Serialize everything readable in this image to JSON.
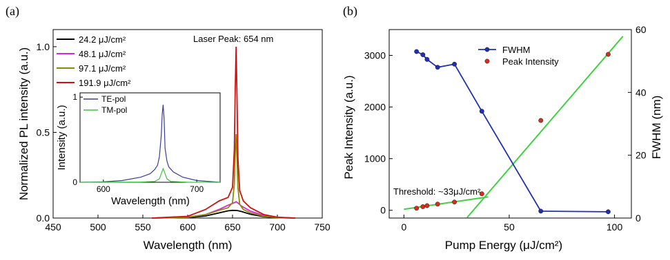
{
  "chart_data": [
    {
      "panel": "(a)",
      "type": "line",
      "xlabel": "Wavelength (nm)",
      "ylabel": "Normalized PL intensity (a.u.)",
      "xlim": [
        450,
        750
      ],
      "ylim": [
        0,
        1.1
      ],
      "xticks": [
        "450",
        "500",
        "550",
        "600",
        "650",
        "700",
        "750"
      ],
      "yticks": [
        "0.0",
        "0.5",
        "1.0"
      ],
      "annotation": "Laser Peak: 654 nm",
      "legend_position": "top-left",
      "series": [
        {
          "name": "24.2 μJ/cm²",
          "color": "#000000",
          "peak": 0.045,
          "x": [
            560,
            600,
            620,
            635,
            645,
            650,
            655,
            660,
            670,
            685,
            700,
            720
          ],
          "y": [
            0,
            0.003,
            0.012,
            0.03,
            0.042,
            0.045,
            0.044,
            0.038,
            0.022,
            0.008,
            0.002,
            0
          ]
        },
        {
          "name": "48.1 μJ/cm²",
          "color": "#e020e0",
          "peak": 0.095,
          "x": [
            560,
            600,
            620,
            635,
            645,
            650,
            652,
            654,
            656,
            660,
            670,
            685,
            700,
            720
          ],
          "y": [
            0,
            0.005,
            0.02,
            0.05,
            0.075,
            0.085,
            0.09,
            0.095,
            0.088,
            0.07,
            0.04,
            0.015,
            0.004,
            0
          ]
        },
        {
          "name": "97.1 μJ/cm²",
          "color": "#8a8a00",
          "peak": 0.49,
          "x": [
            560,
            600,
            620,
            635,
            645,
            650,
            652,
            653,
            654,
            655,
            656,
            658,
            662,
            670,
            685,
            700,
            720
          ],
          "y": [
            0,
            0.005,
            0.02,
            0.045,
            0.06,
            0.09,
            0.2,
            0.38,
            0.49,
            0.35,
            0.18,
            0.08,
            0.05,
            0.03,
            0.01,
            0.003,
            0
          ]
        },
        {
          "name": "191.9 μJ/cm²",
          "color": "#d01010",
          "peak": 1.0,
          "x": [
            560,
            600,
            620,
            635,
            645,
            650,
            652,
            653,
            654,
            655,
            656,
            658,
            662,
            670,
            685,
            700,
            720
          ],
          "y": [
            0,
            0.01,
            0.05,
            0.1,
            0.12,
            0.18,
            0.4,
            0.75,
            1.0,
            0.7,
            0.35,
            0.16,
            0.1,
            0.06,
            0.02,
            0.005,
            0
          ]
        }
      ],
      "inset": {
        "type": "line",
        "xlabel": "Wavelength (nm)",
        "ylabel": "Intensity (a.u.)",
        "xlim": [
          575,
          725
        ],
        "ylim": [
          0,
          1.05
        ],
        "xticks": [
          "600",
          "700"
        ],
        "yticks": [
          "0",
          "1"
        ],
        "series": [
          {
            "name": "TE-pol",
            "color": "#3a3aa0",
            "x": [
              575,
              600,
              620,
              640,
              650,
              655,
              658,
              660,
              662,
              663,
              664,
              665,
              666,
              668,
              670,
              675,
              685,
              700,
              725
            ],
            "y": [
              0,
              0.005,
              0.02,
              0.06,
              0.1,
              0.15,
              0.2,
              0.3,
              0.55,
              0.8,
              0.91,
              0.75,
              0.4,
              0.25,
              0.18,
              0.12,
              0.06,
              0.02,
              0
            ]
          },
          {
            "name": "TM-pol",
            "color": "#40c040",
            "x": [
              575,
              640,
              655,
              660,
              662,
              664,
              666,
              668,
              672,
              690,
              725
            ],
            "y": [
              0,
              0.003,
              0.01,
              0.04,
              0.1,
              0.16,
              0.1,
              0.04,
              0.01,
              0.002,
              0
            ]
          }
        ]
      }
    },
    {
      "panel": "(b)",
      "type": "scatter",
      "xlabel": "Pump Energy (μJ/cm²)",
      "ylabel": "Peak Intensity (a.u.)",
      "ylabel_right": "FWHM (nm)",
      "xlim": [
        -7,
        108
      ],
      "ylim": [
        -150,
        3500
      ],
      "ylim_right": [
        0,
        60
      ],
      "xticks": [
        "0",
        "50",
        "100"
      ],
      "yticks": [
        "0",
        "1000",
        "2000",
        "3000"
      ],
      "yticks_right": [
        "0",
        "20",
        "40",
        "60"
      ],
      "annotation": "Threshold: ~33μJ/cm²",
      "legend_position": "top-center",
      "series": [
        {
          "name": "FWHM",
          "color": "#2030b0",
          "axis": "right",
          "style": "line+marker",
          "x": [
            6,
            9,
            11,
            16,
            24,
            37,
            65,
            97
          ],
          "y": [
            53,
            52,
            50.5,
            48,
            49,
            34,
            2.2,
            2
          ]
        },
        {
          "name": "Peak Intensity",
          "color": "#d03020",
          "axis": "left",
          "style": "marker",
          "x": [
            6,
            9,
            11,
            16,
            24,
            37,
            65,
            97
          ],
          "y": [
            40,
            70,
            90,
            120,
            160,
            320,
            1740,
            3020
          ]
        }
      ],
      "fits": [
        {
          "color": "#40d040",
          "x": [
            0,
            40
          ],
          "y": [
            20,
            260
          ]
        },
        {
          "color": "#40d040",
          "x": [
            30,
            104
          ],
          "y": [
            -140,
            3370
          ]
        }
      ]
    }
  ]
}
